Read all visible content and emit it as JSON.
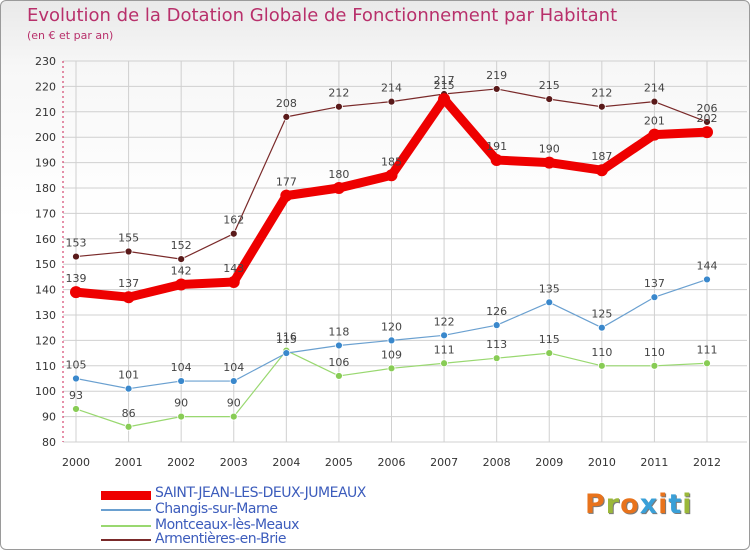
{
  "header": {
    "title": "Evolution de la Dotation Globale de Fonctionnement par Habitant",
    "subtitle": "(en € et par an)"
  },
  "brand": {
    "logo_text": "Proxiti"
  },
  "colors": {
    "background": "#ffffff",
    "grid": "#d0d0d0",
    "title": "#b8306b",
    "legend_text": "#3c5cbc",
    "logo": [
      "#e8731c",
      "#9bb83a",
      "#e8731c",
      "#3aa0d8",
      "#e8731c",
      "#3aa0d8",
      "#9bb83a"
    ]
  },
  "chart_data": {
    "type": "line",
    "title": "Evolution de la Dotation Globale de Fonctionnement par Habitant",
    "subtitle": "(en € et par an)",
    "xlabel": "",
    "ylabel": "",
    "categories": [
      "2000",
      "2001",
      "2002",
      "2003",
      "2004",
      "2005",
      "2006",
      "2007",
      "2008",
      "2009",
      "2010",
      "2011",
      "2012"
    ],
    "ylim": [
      80,
      230
    ],
    "yticks": [
      80,
      90,
      100,
      110,
      120,
      130,
      140,
      150,
      160,
      170,
      180,
      190,
      200,
      210,
      220,
      230
    ],
    "grid": true,
    "legend_position": "bottom-left",
    "series": [
      {
        "name": "Armentières-en-Brie",
        "color": "#7a2a2a",
        "marker": "#5a1a1a",
        "values": [
          153,
          155,
          152,
          162,
          208,
          212,
          214,
          217,
          219,
          215,
          212,
          214,
          206
        ]
      },
      {
        "name": "Montceaux-lès-Meaux",
        "color": "#99d870",
        "marker": "#88cc55",
        "values": [
          93,
          86,
          90,
          90,
          116,
          106,
          109,
          111,
          113,
          115,
          110,
          110,
          111
        ]
      },
      {
        "name": "Changis-sur-Marne",
        "color": "#6aa0d0",
        "marker": "#3a88cc",
        "values": [
          105,
          101,
          104,
          104,
          115,
          118,
          120,
          122,
          126,
          135,
          125,
          137,
          144
        ]
      },
      {
        "name": "SAINT-JEAN-LES-DEUX-JUMEAUX",
        "color": "#ee0000",
        "marker": "#ee0000",
        "values": [
          139,
          137,
          142,
          143,
          177,
          180,
          185,
          215,
          191,
          190,
          187,
          201,
          202
        ]
      }
    ]
  },
  "legend": {
    "items": [
      {
        "label": "SAINT-JEAN-LES-DEUX-JUMEAUX",
        "color": "#ee0000"
      },
      {
        "label": "Changis-sur-Marne",
        "color": "#6aa0d0"
      },
      {
        "label": "Montceaux-lès-Meaux",
        "color": "#99d870"
      },
      {
        "label": "Armentières-en-Brie",
        "color": "#7a2a2a"
      }
    ]
  }
}
